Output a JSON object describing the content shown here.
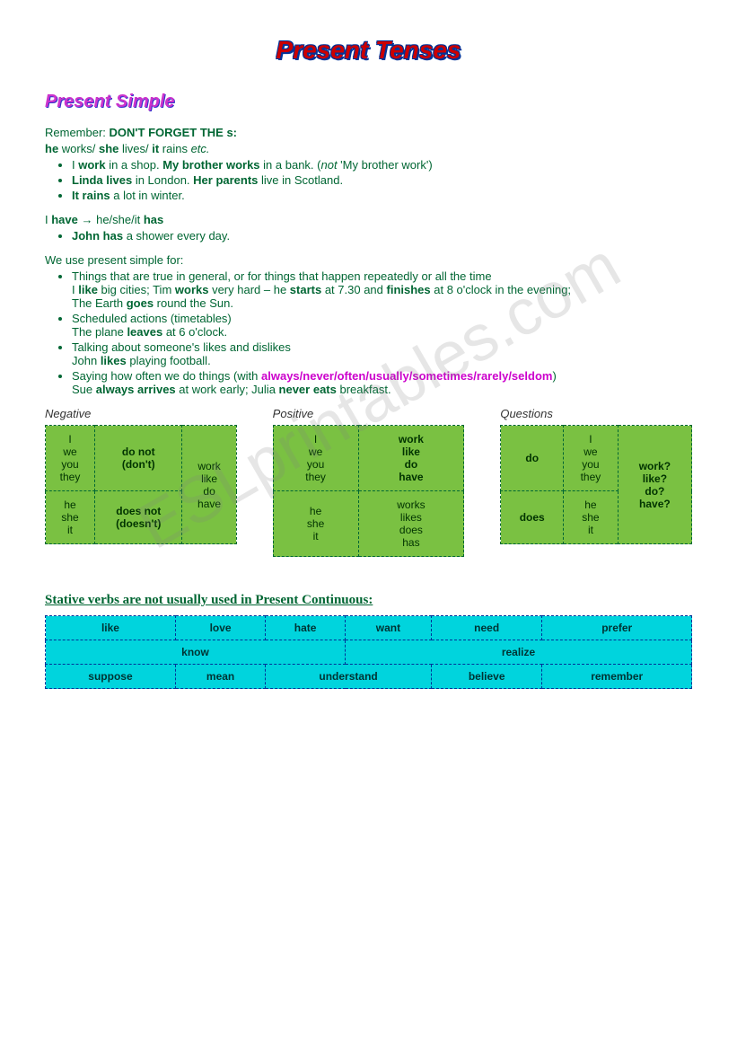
{
  "watermark": "ESLprintables.com",
  "titles": {
    "main": "Present Tenses",
    "section": "Present Simple"
  },
  "intro": {
    "remember_prefix": "Remember: ",
    "remember_bold": "DON'T FORGET THE s:",
    "he": "he",
    "works_s": " works/ ",
    "she": "she",
    "lives_s": " lives/ ",
    "it": "it",
    "rains": " rains ",
    "etc": "etc."
  },
  "bullets1": {
    "b1_a": "I ",
    "b1_b": "work",
    "b1_c": " in a shop. ",
    "b1_d": "My brother works",
    "b1_e": " in a bank. (",
    "b1_f": "not",
    "b1_g": " 'My brother work')",
    "b2_a": "Linda lives",
    "b2_b": " in London. ",
    "b2_c": "Her parents",
    "b2_d": " live in Scotland.",
    "b3_a": "It rains",
    "b3_b": " a lot in winter."
  },
  "have_line": {
    "a": "I ",
    "b": "have",
    "c": " → he/she/it ",
    "d": "has"
  },
  "bullets2": {
    "b1_a": "John has",
    "b1_b": " a shower every day."
  },
  "uses_heading": "We use present simple for:",
  "uses": {
    "u1": "Things that are true in general, or for things that happen repeatedly or all the time",
    "u1ex_a": "I ",
    "u1ex_b": "like",
    "u1ex_c": " big cities; Tim ",
    "u1ex_d": "works",
    "u1ex_e": " very hard – he ",
    "u1ex_f": "starts",
    "u1ex_g": " at 7.30 and ",
    "u1ex_h": "finishes",
    "u1ex_i": " at 8 o'clock in the evening;",
    "u1ex2_a": "The Earth ",
    "u1ex2_b": "goes",
    "u1ex2_c": " round the Sun.",
    "u2": "Scheduled actions (timetables)",
    "u2ex_a": "The plane ",
    "u2ex_b": "leaves",
    "u2ex_c": " at 6 o'clock.",
    "u3": "Talking about someone's likes and dislikes",
    "u3ex_a": "John ",
    "u3ex_b": "likes",
    "u3ex_c": " playing football.",
    "u4_a": "Saying how often we do things (with ",
    "u4_b": "always/never/often/usually/sometimes/rarely/seldom",
    "u4_c": ")",
    "u4ex_a": "Sue ",
    "u4ex_b": "always arrives",
    "u4ex_c": " at work early; Julia ",
    "u4ex_d": "never eats",
    "u4ex_e": " breakfast."
  },
  "tables": {
    "negative": {
      "label": "Negative",
      "c1a": "I\nwe\nyou\nthey",
      "c2a": "do not\n(don't)",
      "c1b": "he\nshe\nit",
      "c2b": "does not\n(doesn't)",
      "c3": "work\nlike\ndo\nhave"
    },
    "positive": {
      "label": "Positive",
      "c1a": "I\nwe\nyou\nthey",
      "c2a": "work\nlike\ndo\nhave",
      "c1b": "he\nshe\nit",
      "c2b": "works\nlikes\ndoes\nhas"
    },
    "questions": {
      "label": "Questions",
      "c1a": "do",
      "c2a": "I\nwe\nyou\nthey",
      "c1b": "does",
      "c2b": "he\nshe\nit",
      "c3": "work?\nlike?\ndo?\nhave?"
    }
  },
  "stative": {
    "heading": "Stative verbs are not usually used in Present Continuous:",
    "row1": [
      "like",
      "love",
      "hate",
      "want",
      "need",
      "prefer"
    ],
    "row2_a": "know",
    "row2_b": "realize",
    "row3": [
      "suppose",
      "mean",
      "understand",
      "believe",
      "remember"
    ]
  },
  "colors": {
    "text": "#006633",
    "magenta": "#cc00cc",
    "green_cell": "#7ac142",
    "cyan_cell": "#00d4dd",
    "title_red": "#cc0000",
    "title_blue": "#003399"
  }
}
